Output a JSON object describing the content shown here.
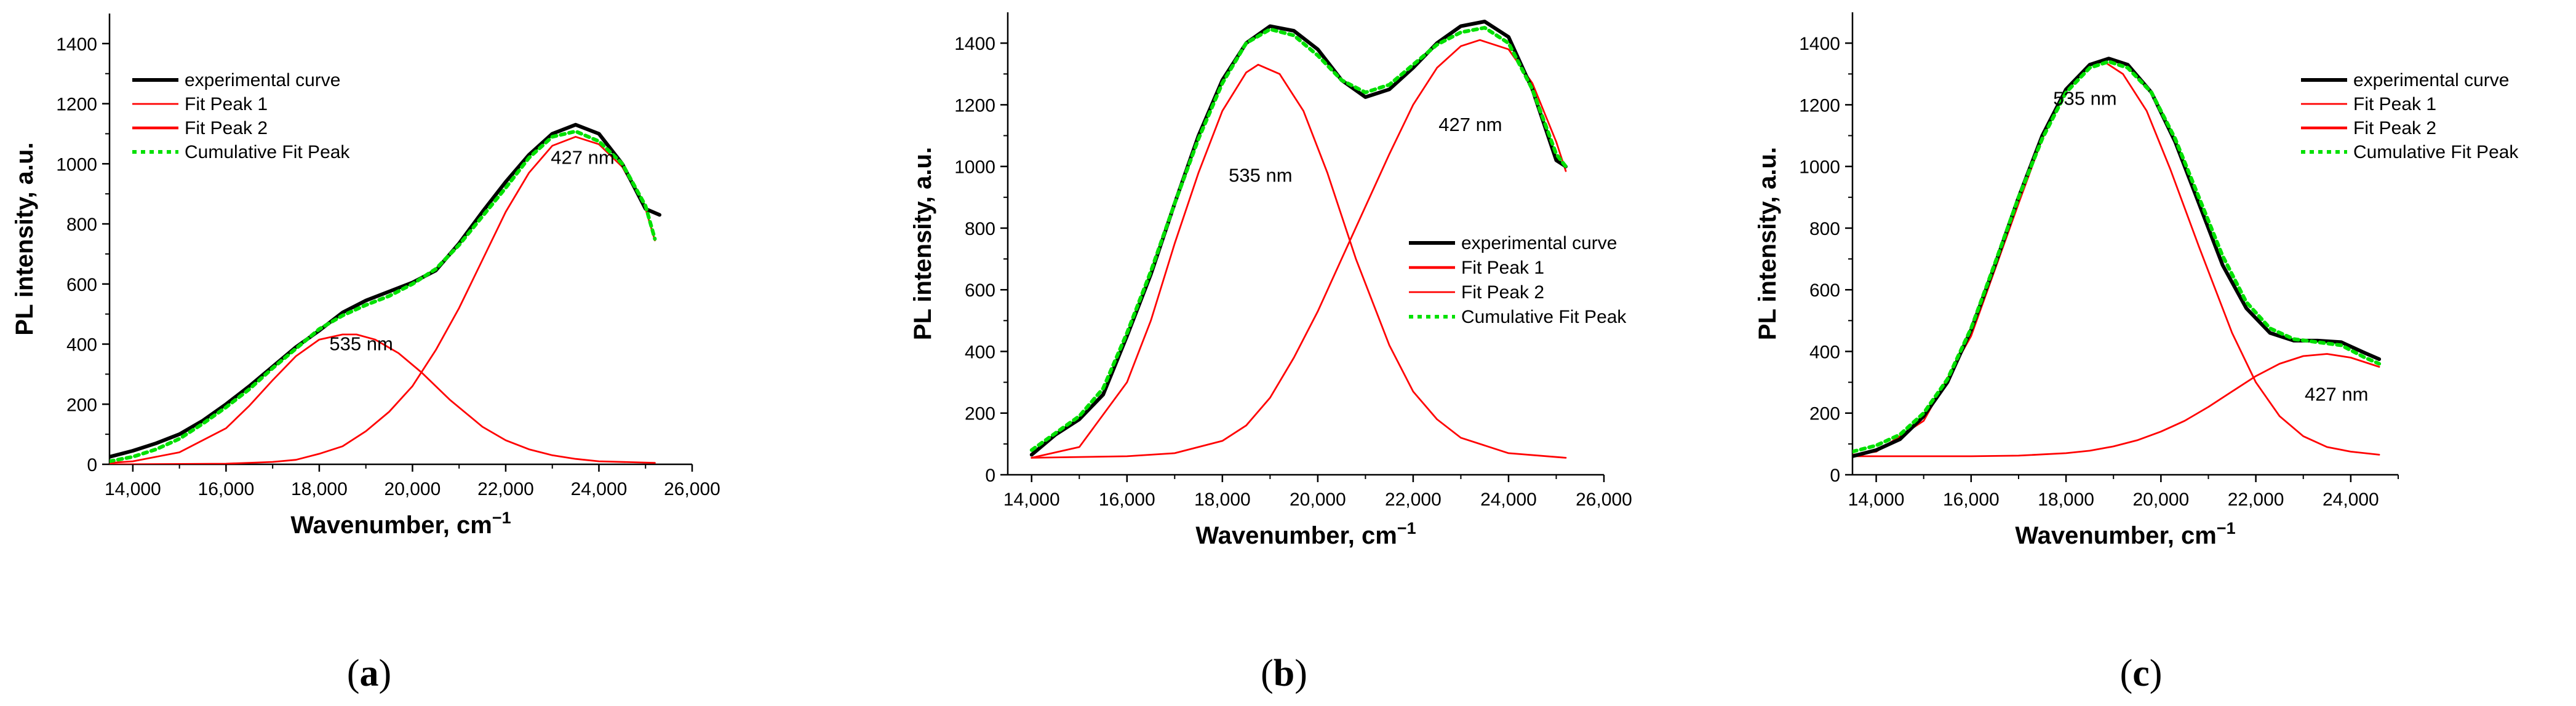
{
  "colors": {
    "experimental": "#000000",
    "fit": "#ff0000",
    "cumulative": "#00e000",
    "axis": "#000000"
  },
  "chart_data": [
    {
      "type": "line",
      "panel_label": "a",
      "xlabel_text": "Wavenumber, cm",
      "xlabel_sup": "−1",
      "ylabel": "PL intensity, a.u.",
      "xlim": [
        13500,
        26000
      ],
      "ylim": [
        0,
        1500
      ],
      "xticks": [
        14000,
        16000,
        18000,
        20000,
        22000,
        24000,
        26000
      ],
      "xtick_labels": [
        "14,000",
        "16,000",
        "18,000",
        "20,000",
        "22,000",
        "24,000",
        "26,000"
      ],
      "yticks": [
        0,
        200,
        400,
        600,
        800,
        1000,
        1200,
        1400
      ],
      "ytick_labels": [
        "0",
        "200",
        "400",
        "600",
        "800",
        "1000",
        "1200",
        "1400"
      ],
      "legend_position": "top-left",
      "legend": [
        "experimental curve",
        "Fit Peak 1",
        "Fit Peak 2",
        "Cumulative Fit Peak"
      ],
      "annotations": [
        {
          "text": "535 nm",
          "x": 18900,
          "y": 380
        },
        {
          "text": "427 nm",
          "x": 23650,
          "y": 1000
        }
      ],
      "series": [
        {
          "name": "experimental curve",
          "role": "experimental",
          "x": [
            13500,
            14000,
            14500,
            15000,
            15500,
            16000,
            16500,
            17000,
            17500,
            18000,
            18500,
            19000,
            19500,
            20000,
            20500,
            21000,
            21500,
            22000,
            22500,
            23000,
            23500,
            24000,
            24500,
            25000,
            25300
          ],
          "y": [
            25,
            45,
            70,
            100,
            145,
            200,
            260,
            325,
            390,
            445,
            505,
            545,
            575,
            605,
            645,
            735,
            840,
            940,
            1030,
            1100,
            1130,
            1100,
            1000,
            850,
            830
          ]
        },
        {
          "name": "Fit Peak 1",
          "role": "fit",
          "x": [
            13500,
            14000,
            15000,
            16000,
            16500,
            17000,
            17500,
            18000,
            18500,
            18800,
            19200,
            19700,
            20200,
            20800,
            21500,
            22000,
            22500,
            23000,
            23500,
            24000,
            25200
          ],
          "y": [
            5,
            10,
            40,
            120,
            195,
            280,
            360,
            415,
            432,
            432,
            415,
            370,
            305,
            215,
            125,
            80,
            50,
            30,
            18,
            10,
            5
          ]
        },
        {
          "name": "Fit Peak 2",
          "role": "fit",
          "x": [
            13500,
            16000,
            17000,
            17500,
            18000,
            18500,
            19000,
            19500,
            20000,
            20500,
            21000,
            21500,
            22000,
            22500,
            23000,
            23500,
            24000,
            24500,
            25000,
            25200
          ],
          "y": [
            0,
            2,
            8,
            15,
            35,
            60,
            110,
            175,
            260,
            380,
            520,
            680,
            840,
            970,
            1060,
            1090,
            1065,
            990,
            850,
            745
          ]
        },
        {
          "name": "Cumulative Fit Peak",
          "role": "cumulative",
          "x": [
            13500,
            14000,
            14500,
            15000,
            15500,
            16000,
            16500,
            17000,
            17500,
            18000,
            18500,
            19000,
            19500,
            20000,
            20500,
            21000,
            21500,
            22000,
            22500,
            23000,
            23500,
            24000,
            24500,
            25000,
            25200
          ],
          "y": [
            10,
            25,
            50,
            85,
            135,
            190,
            250,
            320,
            385,
            450,
            495,
            530,
            560,
            600,
            650,
            730,
            825,
            920,
            1020,
            1090,
            1108,
            1075,
            1000,
            860,
            750
          ]
        }
      ]
    },
    {
      "type": "line",
      "panel_label": "b",
      "xlabel_text": "Wavenumber, cm",
      "xlabel_sup": "−1",
      "ylabel": "PL intensity, a.u.",
      "xlim": [
        13500,
        26000
      ],
      "ylim": [
        0,
        1500
      ],
      "xticks": [
        14000,
        16000,
        18000,
        20000,
        22000,
        24000,
        26000
      ],
      "xtick_labels": [
        "14,000",
        "16,000",
        "18,000",
        "20,000",
        "22,000",
        "24,000",
        "26,000"
      ],
      "yticks": [
        0,
        200,
        400,
        600,
        800,
        1000,
        1200,
        1400
      ],
      "ytick_labels": [
        "0",
        "200",
        "400",
        "600",
        "800",
        "1000",
        "1200",
        "1400"
      ],
      "legend_position": "center-right",
      "legend": [
        "experimental curve",
        "Fit Peak 1",
        "Fit Peak 2",
        "Cumulative Fit Peak"
      ],
      "annotations": [
        {
          "text": "535 nm",
          "x": 18800,
          "y": 950
        },
        {
          "text": "427 nm",
          "x": 23200,
          "y": 1115
        }
      ],
      "series": [
        {
          "name": "experimental curve",
          "role": "experimental",
          "x": [
            14000,
            14500,
            15000,
            15500,
            16000,
            16500,
            17000,
            17500,
            18000,
            18500,
            19000,
            19500,
            20000,
            20500,
            21000,
            21500,
            22000,
            22500,
            23000,
            23500,
            24000,
            24500,
            25000,
            25200
          ],
          "y": [
            65,
            130,
            180,
            260,
            450,
            650,
            880,
            1100,
            1280,
            1400,
            1455,
            1440,
            1380,
            1280,
            1225,
            1250,
            1320,
            1400,
            1455,
            1470,
            1420,
            1250,
            1020,
            1000
          ]
        },
        {
          "name": "Fit Peak 1",
          "role": "fit",
          "x": [
            14000,
            15000,
            16000,
            16500,
            17000,
            17500,
            18000,
            18500,
            18750,
            19200,
            19700,
            20200,
            20800,
            21500,
            22000,
            22500,
            23000,
            24000,
            25200
          ],
          "y": [
            55,
            90,
            300,
            500,
            750,
            980,
            1180,
            1305,
            1330,
            1300,
            1180,
            980,
            700,
            420,
            270,
            180,
            120,
            70,
            55
          ]
        },
        {
          "name": "Fit Peak 2",
          "role": "fit",
          "x": [
            14000,
            16000,
            17000,
            18000,
            18500,
            19000,
            19500,
            20000,
            20500,
            21000,
            21500,
            22000,
            22500,
            23000,
            23400,
            24000,
            24500,
            25000,
            25200
          ],
          "y": [
            55,
            60,
            70,
            110,
            160,
            250,
            380,
            530,
            700,
            870,
            1040,
            1200,
            1320,
            1390,
            1410,
            1380,
            1270,
            1080,
            985
          ]
        },
        {
          "name": "Cumulative Fit Peak",
          "role": "cumulative",
          "x": [
            14000,
            14500,
            15000,
            15500,
            16000,
            16500,
            17000,
            17500,
            18000,
            18500,
            19000,
            19500,
            20000,
            20500,
            21000,
            21500,
            22000,
            22500,
            23000,
            23500,
            24000,
            24500,
            25000,
            25200
          ],
          "y": [
            80,
            135,
            190,
            280,
            460,
            660,
            880,
            1090,
            1270,
            1400,
            1445,
            1425,
            1360,
            1280,
            1240,
            1265,
            1330,
            1395,
            1435,
            1450,
            1400,
            1250,
            1040,
            1000
          ]
        }
      ]
    },
    {
      "type": "line",
      "panel_label": "c",
      "xlabel_text": "Wavenumber, cm",
      "xlabel_sup": "−1",
      "ylabel": "PL intensity, a.u.",
      "xlim": [
        13500,
        25000
      ],
      "ylim": [
        0,
        1500
      ],
      "xticks": [
        14000,
        16000,
        18000,
        20000,
        22000,
        24000
      ],
      "xtick_labels": [
        "14,000",
        "16,000",
        "18,000",
        "20,000",
        "22,000",
        "24,000"
      ],
      "yticks": [
        0,
        200,
        400,
        600,
        800,
        1000,
        1200,
        1400
      ],
      "ytick_labels": [
        "0",
        "200",
        "400",
        "600",
        "800",
        "1000",
        "1200",
        "1400"
      ],
      "legend_position": "top-right",
      "legend": [
        "experimental curve",
        "Fit Peak 1",
        "Fit Peak 2",
        "Cumulative Fit Peak"
      ],
      "annotations": [
        {
          "text": "535 nm",
          "x": 18400,
          "y": 1200
        },
        {
          "text": "427 nm",
          "x": 23700,
          "y": 240
        }
      ],
      "series": [
        {
          "name": "experimental curve",
          "role": "experimental",
          "x": [
            13500,
            14000,
            14500,
            15000,
            15500,
            16000,
            16500,
            17000,
            17500,
            18000,
            18500,
            18900,
            19300,
            19800,
            20300,
            20800,
            21300,
            21800,
            22300,
            22800,
            23300,
            23800,
            24300,
            24600
          ],
          "y": [
            60,
            80,
            115,
            190,
            300,
            470,
            680,
            900,
            1100,
            1250,
            1330,
            1350,
            1330,
            1240,
            1080,
            880,
            680,
            540,
            460,
            435,
            435,
            430,
            395,
            375
          ]
        },
        {
          "name": "Fit Peak 1",
          "role": "fit",
          "x": [
            13500,
            14000,
            15000,
            16000,
            17000,
            17500,
            18000,
            18500,
            18800,
            19200,
            19700,
            20200,
            20800,
            21500,
            22000,
            22500,
            23000,
            23500,
            24000,
            24600
          ],
          "y": [
            65,
            75,
            175,
            450,
            880,
            1090,
            1250,
            1330,
            1340,
            1300,
            1180,
            990,
            740,
            460,
            300,
            190,
            125,
            90,
            75,
            65
          ]
        },
        {
          "name": "Fit Peak 2",
          "role": "fit",
          "x": [
            13500,
            15000,
            16000,
            17000,
            18000,
            18500,
            19000,
            19500,
            20000,
            20500,
            21000,
            21500,
            22000,
            22500,
            23000,
            23500,
            24000,
            24600
          ],
          "y": [
            60,
            60,
            60,
            62,
            70,
            78,
            92,
            112,
            140,
            175,
            220,
            270,
            320,
            360,
            385,
            392,
            380,
            350
          ]
        },
        {
          "name": "Cumulative Fit Peak",
          "role": "cumulative",
          "x": [
            13500,
            14000,
            14500,
            15000,
            15500,
            16000,
            16500,
            17000,
            17500,
            18000,
            18500,
            18900,
            19300,
            19800,
            20300,
            20800,
            21300,
            21800,
            22300,
            22800,
            23300,
            23800,
            24300,
            24600
          ],
          "y": [
            75,
            95,
            130,
            200,
            310,
            475,
            685,
            900,
            1090,
            1240,
            1320,
            1340,
            1320,
            1240,
            1090,
            900,
            710,
            560,
            475,
            440,
            430,
            420,
            380,
            360
          ]
        }
      ]
    }
  ]
}
